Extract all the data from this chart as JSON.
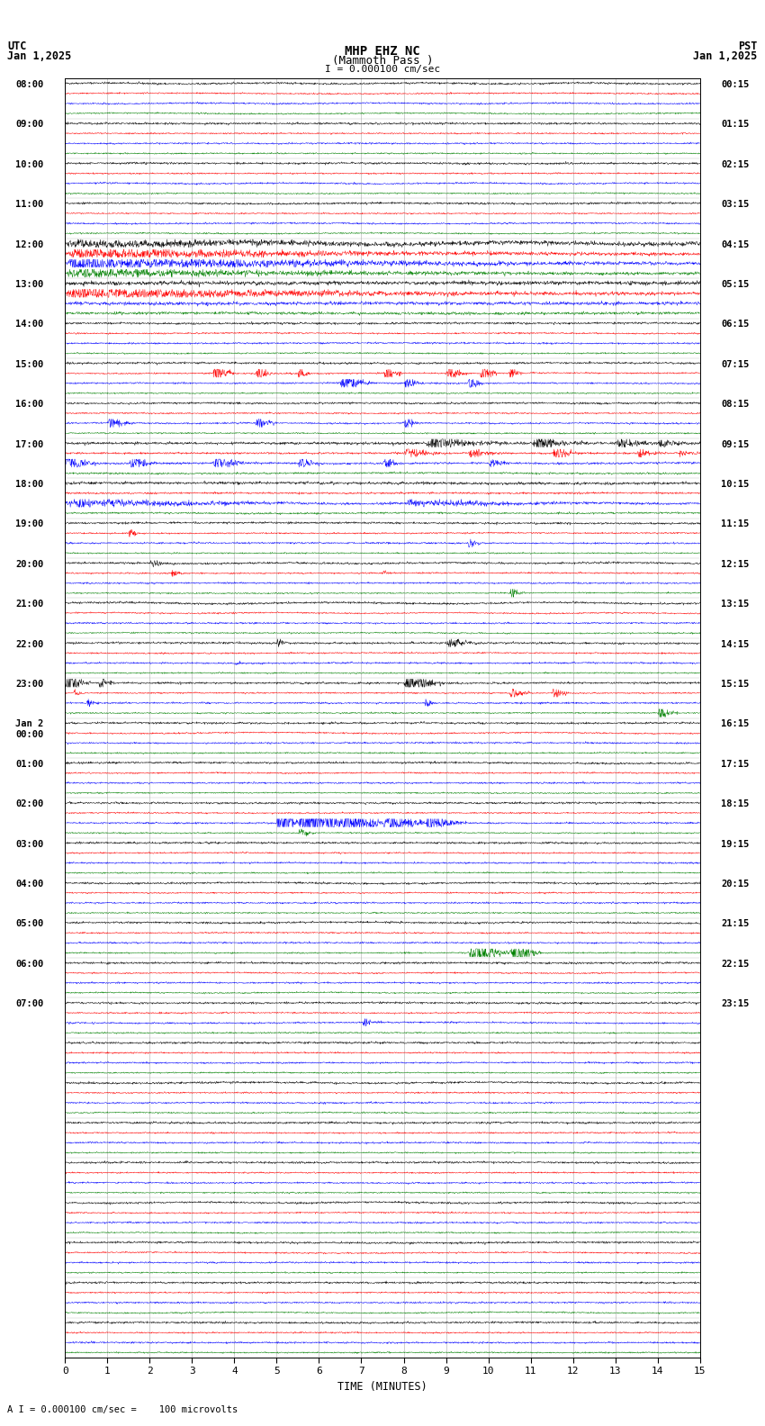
{
  "title_line1": "MHP EHZ NC",
  "title_line2": "(Mammoth Pass )",
  "scale_label": "I = 0.000100 cm/sec",
  "utc_label": "UTC",
  "pst_label": "PST",
  "date_left": "Jan 1,2025",
  "date_right": "Jan 1,2025",
  "bottom_label": "A I = 0.000100 cm/sec =    100 microvolts",
  "xlabel": "TIME (MINUTES)",
  "bg_color": "#ffffff",
  "grid_color": "#888888",
  "trace_colors": [
    "black",
    "red",
    "blue",
    "green"
  ],
  "num_rows": 32,
  "traces_per_row": 4,
  "minutes": 15,
  "left_times_utc": [
    "08:00",
    "",
    "",
    "",
    "09:00",
    "",
    "",
    "",
    "10:00",
    "",
    "",
    "",
    "11:00",
    "",
    "",
    "",
    "12:00",
    "",
    "",
    "",
    "13:00",
    "",
    "",
    "",
    "14:00",
    "",
    "",
    "",
    "15:00",
    "",
    "",
    "",
    "16:00",
    "",
    "",
    "",
    "17:00",
    "",
    "",
    "",
    "18:00",
    "",
    "",
    "",
    "19:00",
    "",
    "",
    "",
    "20:00",
    "",
    "",
    "",
    "21:00",
    "",
    "",
    "",
    "22:00",
    "",
    "",
    "",
    "23:00",
    "",
    "",
    "",
    "Jan 2\n00:00",
    "",
    "",
    "",
    "01:00",
    "",
    "",
    "",
    "02:00",
    "",
    "",
    "",
    "03:00",
    "",
    "",
    "",
    "04:00",
    "",
    "",
    "",
    "05:00",
    "",
    "",
    "",
    "06:00",
    "",
    "",
    "",
    "07:00",
    "",
    "",
    ""
  ],
  "right_times_pst": [
    "00:15",
    "",
    "",
    "",
    "01:15",
    "",
    "",
    "",
    "02:15",
    "",
    "",
    "",
    "03:15",
    "",
    "",
    "",
    "04:15",
    "",
    "",
    "",
    "05:15",
    "",
    "",
    "",
    "06:15",
    "",
    "",
    "",
    "07:15",
    "",
    "",
    "",
    "08:15",
    "",
    "",
    "",
    "09:15",
    "",
    "",
    "",
    "10:15",
    "",
    "",
    "",
    "11:15",
    "",
    "",
    "",
    "12:15",
    "",
    "",
    "",
    "13:15",
    "",
    "",
    "",
    "14:15",
    "",
    "",
    "",
    "15:15",
    "",
    "",
    "",
    "16:15",
    "",
    "",
    "",
    "17:15",
    "",
    "",
    "",
    "18:15",
    "",
    "",
    "",
    "19:15",
    "",
    "",
    "",
    "20:15",
    "",
    "",
    "",
    "21:15",
    "",
    "",
    "",
    "22:15",
    "",
    "",
    "",
    "23:15",
    "",
    "",
    ""
  ],
  "seed": 42,
  "figwidth": 8.5,
  "figheight": 15.84,
  "dpi": 100
}
